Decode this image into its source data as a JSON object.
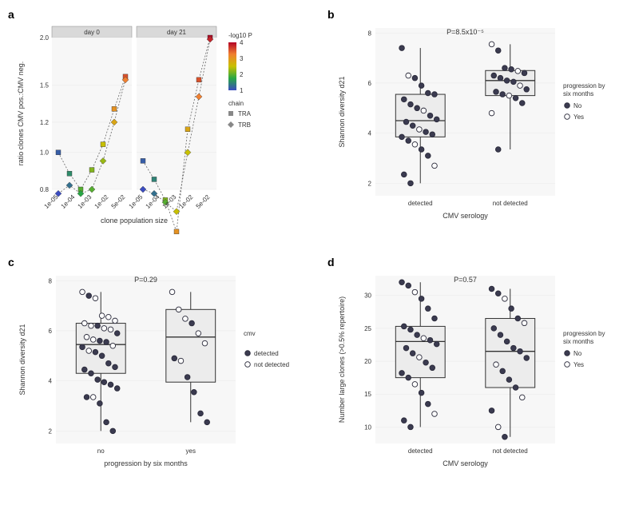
{
  "panel_a": {
    "label": "a",
    "type": "faceted-line-scatter",
    "facets": [
      "day 0",
      "day 21"
    ],
    "x_label": "clone population size",
    "y_label": "ratio clones CMV pos.:CMV neg.",
    "x_ticks": [
      "1e-05",
      "1e-04",
      "1e-03",
      "1e-02",
      "5e-02"
    ],
    "y_ticks": [
      0.8,
      1.0,
      1.2,
      1.5,
      2.0
    ],
    "legend_color_title": "-log10 P",
    "legend_color_values": [
      1,
      2,
      3,
      4
    ],
    "legend_shape_title": "chain",
    "legend_shapes": [
      {
        "name": "TRA",
        "marker": "square"
      },
      {
        "name": "TRB",
        "marker": "diamond"
      }
    ],
    "color_scale": {
      "low": "#3b4cc0",
      "mid_low": "#28a745",
      "mid": "#c8c000",
      "mid_high": "#f08030",
      "high": "#b40426"
    },
    "series": {
      "day 0": {
        "TRA": [
          {
            "x": 0,
            "y": 1.0,
            "logp": 1.0
          },
          {
            "x": 1,
            "y": 0.88,
            "logp": 1.5
          },
          {
            "x": 2,
            "y": 0.8,
            "logp": 2.0
          },
          {
            "x": 3,
            "y": 0.9,
            "logp": 2.2
          },
          {
            "x": 4,
            "y": 1.05,
            "logp": 2.5
          },
          {
            "x": 5,
            "y": 1.3,
            "logp": 3.0
          },
          {
            "x": 6,
            "y": 1.58,
            "logp": 3.5
          }
        ],
        "TRB": [
          {
            "x": 0,
            "y": 0.78,
            "logp": 0.8
          },
          {
            "x": 1,
            "y": 0.82,
            "logp": 1.2
          },
          {
            "x": 2,
            "y": 0.78,
            "logp": 1.8
          },
          {
            "x": 3,
            "y": 0.8,
            "logp": 2.0
          },
          {
            "x": 4,
            "y": 0.95,
            "logp": 2.3
          },
          {
            "x": 5,
            "y": 1.2,
            "logp": 2.8
          },
          {
            "x": 6,
            "y": 1.55,
            "logp": 3.2
          }
        ]
      },
      "day 21": {
        "TRA": [
          {
            "x": 0,
            "y": 0.95,
            "logp": 1.0
          },
          {
            "x": 1,
            "y": 0.85,
            "logp": 1.4
          },
          {
            "x": 2,
            "y": 0.75,
            "logp": 2.2
          },
          {
            "x": 3,
            "y": 0.62,
            "logp": 3.0
          },
          {
            "x": 4,
            "y": 1.15,
            "logp": 2.8
          },
          {
            "x": 5,
            "y": 1.55,
            "logp": 3.5
          },
          {
            "x": 6,
            "y": 2.0,
            "logp": 4.0
          }
        ],
        "TRB": [
          {
            "x": 0,
            "y": 0.8,
            "logp": 0.8
          },
          {
            "x": 1,
            "y": 0.78,
            "logp": 1.2
          },
          {
            "x": 2,
            "y": 0.74,
            "logp": 2.0
          },
          {
            "x": 3,
            "y": 0.7,
            "logp": 2.5
          },
          {
            "x": 4,
            "y": 1.0,
            "logp": 2.5
          },
          {
            "x": 5,
            "y": 1.4,
            "logp": 3.2
          },
          {
            "x": 6,
            "y": 1.98,
            "logp": 3.8
          }
        ]
      }
    }
  },
  "panel_b": {
    "label": "b",
    "type": "boxplot-jitter",
    "pvalue": "P=8.5x10⁻⁵",
    "x_label": "CMV serology",
    "y_label": "Shannon diversity d21",
    "x_categories": [
      "detected",
      "not detected"
    ],
    "y_ticks": [
      2,
      4,
      6,
      8
    ],
    "ylim": [
      1.5,
      8.2
    ],
    "legend_title": "progression by\nsix months",
    "legend_items": [
      {
        "name": "No",
        "fill": "#3b3b50"
      },
      {
        "name": "Yes",
        "fill": "#ffffff"
      }
    ],
    "boxes": {
      "detected": {
        "min": 2.0,
        "q1": 3.85,
        "med": 4.5,
        "q3": 5.55,
        "max": 7.4
      },
      "not detected": {
        "min": 3.35,
        "q1": 5.5,
        "med": 6.1,
        "q3": 6.5,
        "max": 7.55
      }
    },
    "points": {
      "detected": [
        {
          "y": 7.4,
          "fill": "no"
        },
        {
          "y": 6.3,
          "fill": "yes"
        },
        {
          "y": 6.2,
          "fill": "no"
        },
        {
          "y": 5.9,
          "fill": "no"
        },
        {
          "y": 5.6,
          "fill": "no"
        },
        {
          "y": 5.55,
          "fill": "no"
        },
        {
          "y": 5.35,
          "fill": "no"
        },
        {
          "y": 5.15,
          "fill": "no"
        },
        {
          "y": 5.0,
          "fill": "no"
        },
        {
          "y": 4.9,
          "fill": "yes"
        },
        {
          "y": 4.7,
          "fill": "no"
        },
        {
          "y": 4.55,
          "fill": "no"
        },
        {
          "y": 4.45,
          "fill": "no"
        },
        {
          "y": 4.3,
          "fill": "no"
        },
        {
          "y": 4.15,
          "fill": "yes"
        },
        {
          "y": 4.05,
          "fill": "no"
        },
        {
          "y": 3.95,
          "fill": "no"
        },
        {
          "y": 3.85,
          "fill": "no"
        },
        {
          "y": 3.7,
          "fill": "no"
        },
        {
          "y": 3.55,
          "fill": "yes"
        },
        {
          "y": 3.35,
          "fill": "no"
        },
        {
          "y": 3.1,
          "fill": "no"
        },
        {
          "y": 2.7,
          "fill": "yes"
        },
        {
          "y": 2.35,
          "fill": "no"
        },
        {
          "y": 2.0,
          "fill": "no"
        }
      ],
      "not detected": [
        {
          "y": 7.55,
          "fill": "yes"
        },
        {
          "y": 7.3,
          "fill": "no"
        },
        {
          "y": 6.6,
          "fill": "no"
        },
        {
          "y": 6.55,
          "fill": "no"
        },
        {
          "y": 6.48,
          "fill": "yes"
        },
        {
          "y": 6.4,
          "fill": "no"
        },
        {
          "y": 6.3,
          "fill": "no"
        },
        {
          "y": 6.2,
          "fill": "no"
        },
        {
          "y": 6.1,
          "fill": "no"
        },
        {
          "y": 6.05,
          "fill": "no"
        },
        {
          "y": 5.9,
          "fill": "yes"
        },
        {
          "y": 5.75,
          "fill": "no"
        },
        {
          "y": 5.65,
          "fill": "no"
        },
        {
          "y": 5.55,
          "fill": "no"
        },
        {
          "y": 5.5,
          "fill": "yes"
        },
        {
          "y": 5.4,
          "fill": "no"
        },
        {
          "y": 5.2,
          "fill": "no"
        },
        {
          "y": 4.8,
          "fill": "yes"
        },
        {
          "y": 3.35,
          "fill": "no"
        }
      ]
    }
  },
  "panel_c": {
    "label": "c",
    "type": "boxplot-jitter",
    "pvalue": "P=0.29",
    "x_label": "progression by six months",
    "y_label": "Shannon diversity d21",
    "x_categories": [
      "no",
      "yes"
    ],
    "y_ticks": [
      2,
      4,
      6,
      8
    ],
    "ylim": [
      1.5,
      8.2
    ],
    "legend_title": "cmv",
    "legend_items": [
      {
        "name": "detected",
        "fill": "#3b3b50"
      },
      {
        "name": "not detected",
        "fill": "#ffffff"
      }
    ],
    "boxes": {
      "no": {
        "min": 2.0,
        "q1": 4.3,
        "med": 5.45,
        "q3": 6.3,
        "max": 7.55
      },
      "yes": {
        "min": 2.35,
        "q1": 3.95,
        "med": 5.75,
        "q3": 6.85,
        "max": 7.55
      }
    },
    "points": {
      "no": [
        {
          "y": 7.55,
          "fill": "not"
        },
        {
          "y": 7.4,
          "fill": "det"
        },
        {
          "y": 7.3,
          "fill": "not"
        },
        {
          "y": 6.6,
          "fill": "not"
        },
        {
          "y": 6.55,
          "fill": "not"
        },
        {
          "y": 6.4,
          "fill": "not"
        },
        {
          "y": 6.3,
          "fill": "not"
        },
        {
          "y": 6.2,
          "fill": "not"
        },
        {
          "y": 6.2,
          "fill": "det"
        },
        {
          "y": 6.1,
          "fill": "not"
        },
        {
          "y": 6.05,
          "fill": "not"
        },
        {
          "y": 5.9,
          "fill": "det"
        },
        {
          "y": 5.75,
          "fill": "not"
        },
        {
          "y": 5.65,
          "fill": "not"
        },
        {
          "y": 5.6,
          "fill": "det"
        },
        {
          "y": 5.55,
          "fill": "det"
        },
        {
          "y": 5.4,
          "fill": "not"
        },
        {
          "y": 5.35,
          "fill": "det"
        },
        {
          "y": 5.2,
          "fill": "not"
        },
        {
          "y": 5.15,
          "fill": "det"
        },
        {
          "y": 5.0,
          "fill": "det"
        },
        {
          "y": 4.7,
          "fill": "det"
        },
        {
          "y": 4.55,
          "fill": "det"
        },
        {
          "y": 4.45,
          "fill": "det"
        },
        {
          "y": 4.3,
          "fill": "det"
        },
        {
          "y": 4.05,
          "fill": "det"
        },
        {
          "y": 3.95,
          "fill": "det"
        },
        {
          "y": 3.85,
          "fill": "det"
        },
        {
          "y": 3.7,
          "fill": "det"
        },
        {
          "y": 3.35,
          "fill": "det"
        },
        {
          "y": 3.35,
          "fill": "not"
        },
        {
          "y": 3.1,
          "fill": "det"
        },
        {
          "y": 2.35,
          "fill": "det"
        },
        {
          "y": 2.0,
          "fill": "det"
        }
      ],
      "yes": [
        {
          "y": 7.55,
          "fill": "not"
        },
        {
          "y": 6.85,
          "fill": "not"
        },
        {
          "y": 6.48,
          "fill": "not"
        },
        {
          "y": 6.3,
          "fill": "det"
        },
        {
          "y": 5.9,
          "fill": "not"
        },
        {
          "y": 5.5,
          "fill": "not"
        },
        {
          "y": 4.9,
          "fill": "det"
        },
        {
          "y": 4.8,
          "fill": "not"
        },
        {
          "y": 4.15,
          "fill": "det"
        },
        {
          "y": 3.55,
          "fill": "det"
        },
        {
          "y": 2.7,
          "fill": "det"
        },
        {
          "y": 2.35,
          "fill": "det"
        }
      ]
    }
  },
  "panel_d": {
    "label": "d",
    "type": "boxplot-jitter",
    "pvalue": "P=0.57",
    "x_label": "CMV serology",
    "y_label": "Number large clones (>0.5% repertoire)",
    "x_categories": [
      "detected",
      "not detected"
    ],
    "y_ticks": [
      10,
      15,
      20,
      25,
      30
    ],
    "ylim": [
      7.5,
      33
    ],
    "legend_title": "progression by\nsix months",
    "legend_items": [
      {
        "name": "No",
        "fill": "#3b3b50"
      },
      {
        "name": "Yes",
        "fill": "#ffffff"
      }
    ],
    "boxes": {
      "detected": {
        "min": 10.0,
        "q1": 17.5,
        "med": 23.0,
        "q3": 25.3,
        "max": 32.0
      },
      "not detected": {
        "min": 8.5,
        "q1": 16.0,
        "med": 21.5,
        "q3": 26.5,
        "max": 31.0
      }
    },
    "points": {
      "detected": [
        {
          "y": 32,
          "fill": "no"
        },
        {
          "y": 31.5,
          "fill": "no"
        },
        {
          "y": 30.5,
          "fill": "yes"
        },
        {
          "y": 29.5,
          "fill": "no"
        },
        {
          "y": 28,
          "fill": "no"
        },
        {
          "y": 26.5,
          "fill": "no"
        },
        {
          "y": 25.3,
          "fill": "no"
        },
        {
          "y": 24.8,
          "fill": "no"
        },
        {
          "y": 24.0,
          "fill": "no"
        },
        {
          "y": 23.5,
          "fill": "yes"
        },
        {
          "y": 23.2,
          "fill": "no"
        },
        {
          "y": 22.6,
          "fill": "no"
        },
        {
          "y": 22.0,
          "fill": "no"
        },
        {
          "y": 21.2,
          "fill": "no"
        },
        {
          "y": 20.6,
          "fill": "yes"
        },
        {
          "y": 19.8,
          "fill": "no"
        },
        {
          "y": 19.0,
          "fill": "no"
        },
        {
          "y": 18.2,
          "fill": "no"
        },
        {
          "y": 17.5,
          "fill": "no"
        },
        {
          "y": 16.5,
          "fill": "yes"
        },
        {
          "y": 15.2,
          "fill": "no"
        },
        {
          "y": 13.5,
          "fill": "no"
        },
        {
          "y": 12.0,
          "fill": "yes"
        },
        {
          "y": 11.0,
          "fill": "no"
        },
        {
          "y": 10.0,
          "fill": "no"
        }
      ],
      "not detected": [
        {
          "y": 31.0,
          "fill": "no"
        },
        {
          "y": 30.3,
          "fill": "no"
        },
        {
          "y": 29.5,
          "fill": "yes"
        },
        {
          "y": 28.0,
          "fill": "no"
        },
        {
          "y": 26.5,
          "fill": "no"
        },
        {
          "y": 25.8,
          "fill": "yes"
        },
        {
          "y": 25.0,
          "fill": "no"
        },
        {
          "y": 24.0,
          "fill": "no"
        },
        {
          "y": 23.0,
          "fill": "no"
        },
        {
          "y": 22.0,
          "fill": "no"
        },
        {
          "y": 21.5,
          "fill": "no"
        },
        {
          "y": 20.5,
          "fill": "no"
        },
        {
          "y": 19.5,
          "fill": "yes"
        },
        {
          "y": 18.5,
          "fill": "no"
        },
        {
          "y": 17.2,
          "fill": "no"
        },
        {
          "y": 16.0,
          "fill": "no"
        },
        {
          "y": 14.5,
          "fill": "yes"
        },
        {
          "y": 12.5,
          "fill": "no"
        },
        {
          "y": 10.0,
          "fill": "yes"
        },
        {
          "y": 8.5,
          "fill": "no"
        }
      ]
    }
  },
  "colors": {
    "point_dark": "#3b3b50",
    "point_open": "#ffffff",
    "point_stroke": "#2a2a3a"
  }
}
